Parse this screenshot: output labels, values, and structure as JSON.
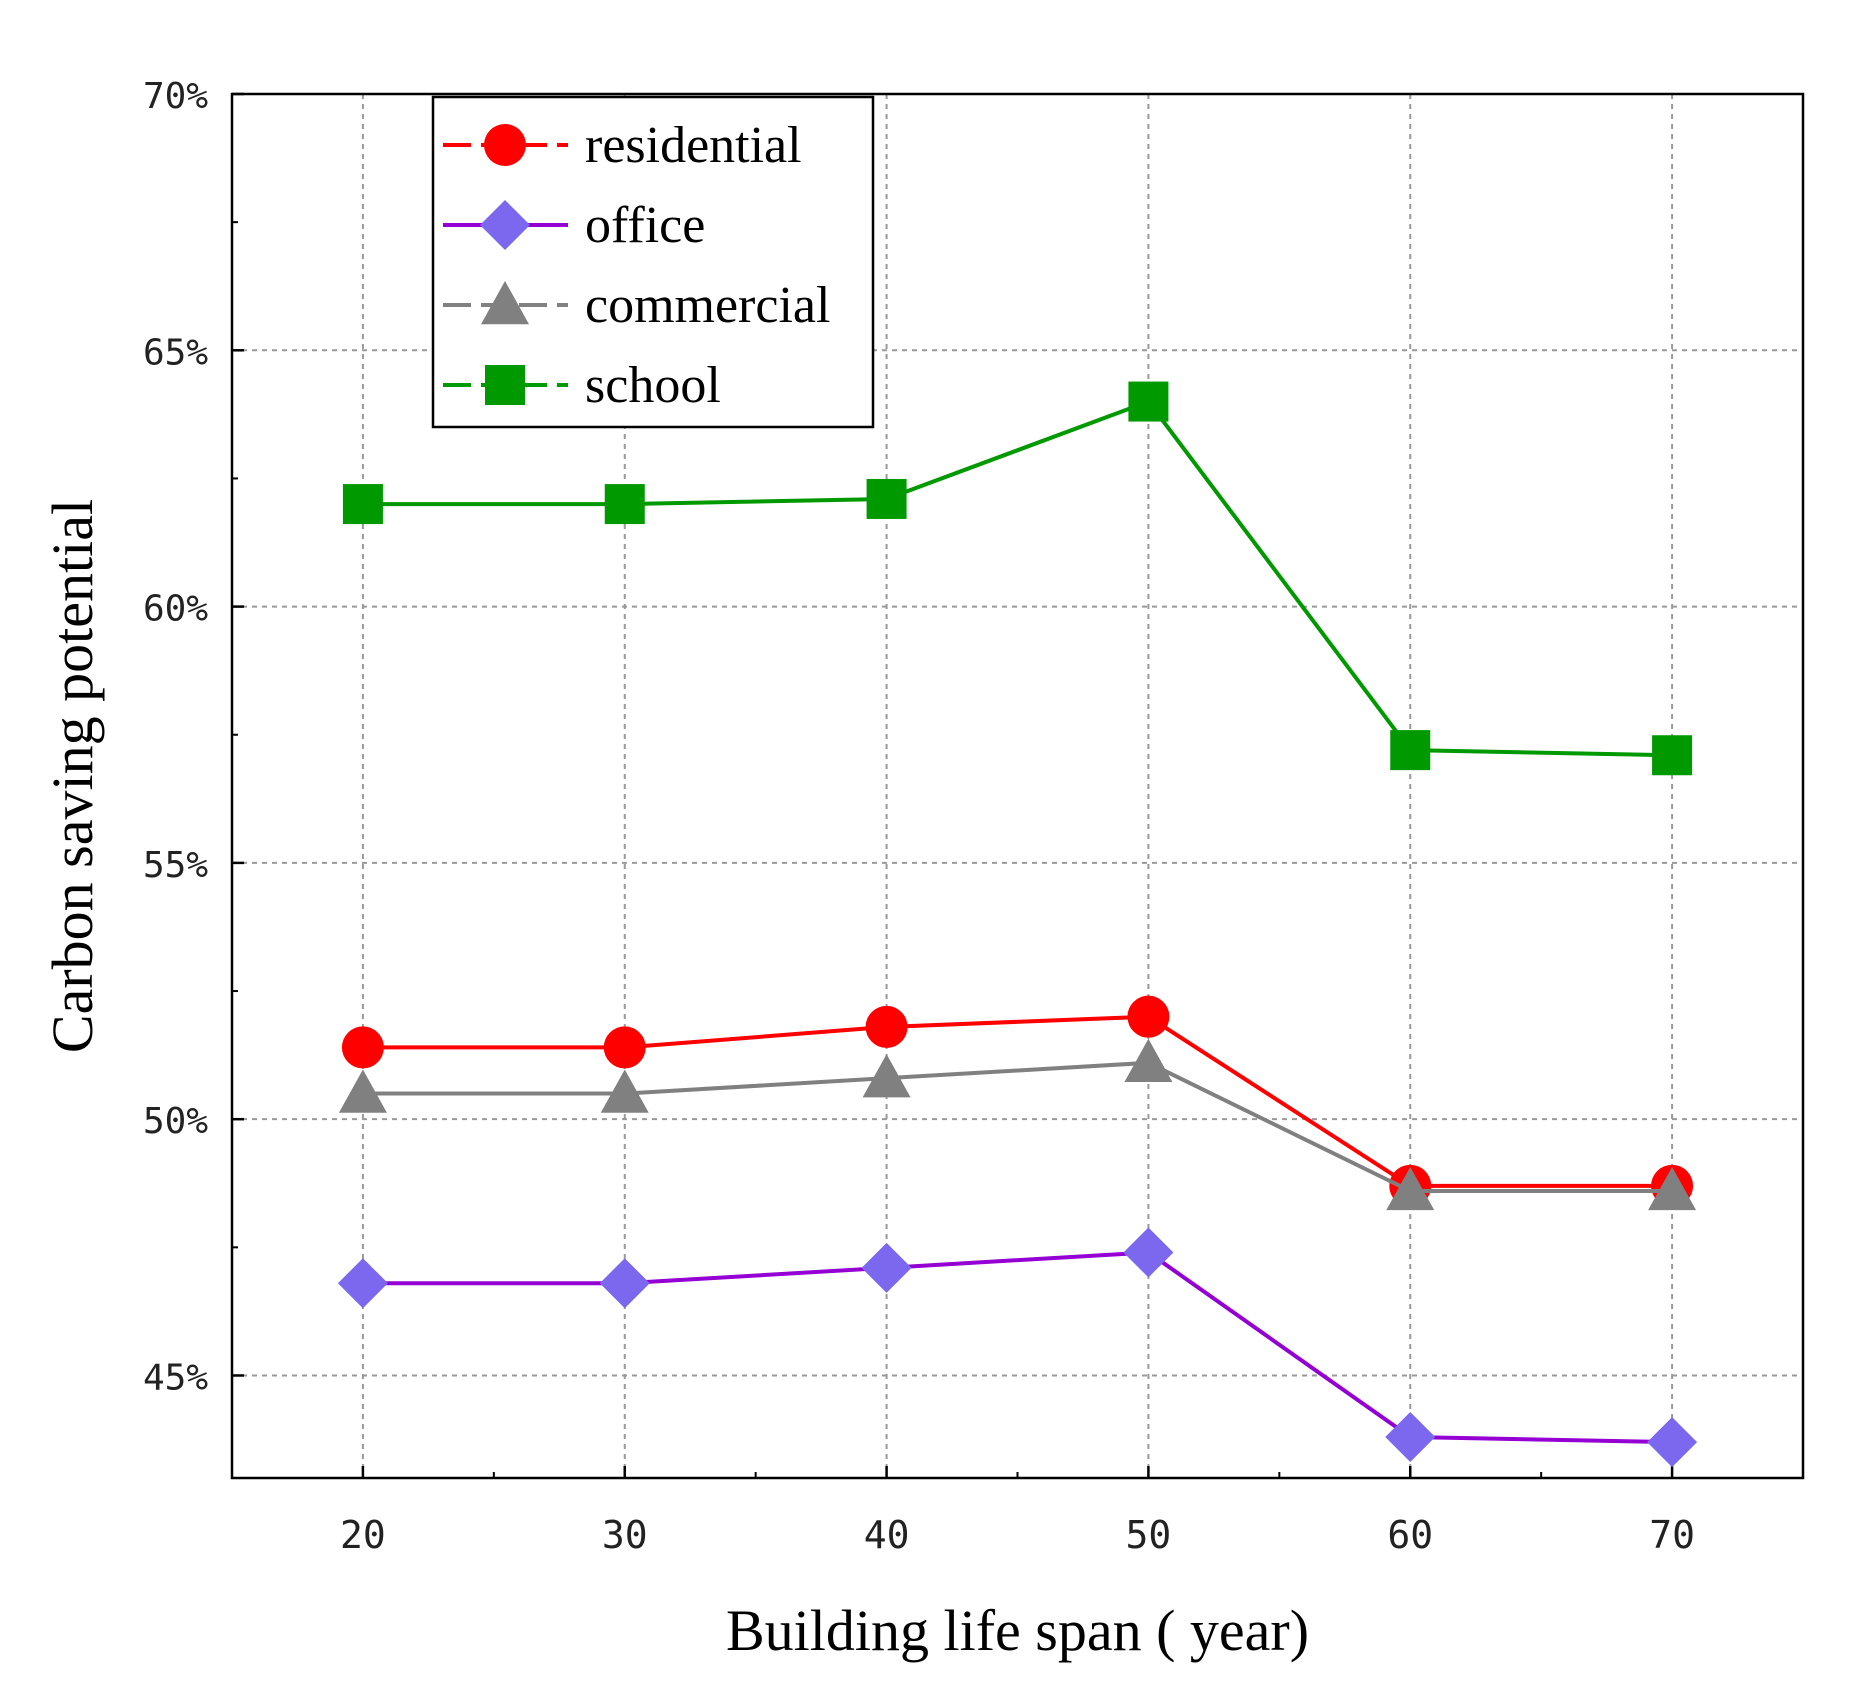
{
  "chart_data": {
    "type": "line",
    "xlabel": "Building life span ( year)",
    "ylabel": "Carbon saving potential",
    "x": [
      20,
      30,
      40,
      50,
      60,
      70
    ],
    "xlim": [
      15,
      75
    ],
    "ylim": [
      43,
      70
    ],
    "yticks": [
      45,
      50,
      55,
      60,
      65,
      70
    ],
    "ytick_labels": [
      "45%",
      "50%",
      "55%",
      "60%",
      "65%",
      "70%"
    ],
    "xtick_labels": [
      "20",
      "30",
      "40",
      "50",
      "60",
      "70"
    ],
    "grid": true,
    "legend_position": "top-left",
    "series": [
      {
        "name": "residential",
        "color": "#ff0000",
        "line_color": "#ff0000",
        "marker": "circle",
        "dash": "dashed",
        "values": [
          51.4,
          51.4,
          51.8,
          52.0,
          48.7,
          48.7
        ]
      },
      {
        "name": "office",
        "color": "#7b68ee",
        "line_color": "#9400d3",
        "marker": "diamond",
        "dash": "solid",
        "values": [
          46.8,
          46.8,
          47.1,
          47.4,
          43.8,
          43.7
        ]
      },
      {
        "name": "commercial",
        "color": "#808080",
        "line_color": "#808080",
        "marker": "triangle",
        "dash": "dashed",
        "values": [
          50.5,
          50.5,
          50.8,
          51.1,
          48.6,
          48.6
        ]
      },
      {
        "name": "school",
        "color": "#009900",
        "line_color": "#009900",
        "marker": "square",
        "dash": "dashed",
        "values": [
          62.0,
          62.0,
          62.1,
          64.0,
          57.2,
          57.1
        ]
      }
    ]
  }
}
